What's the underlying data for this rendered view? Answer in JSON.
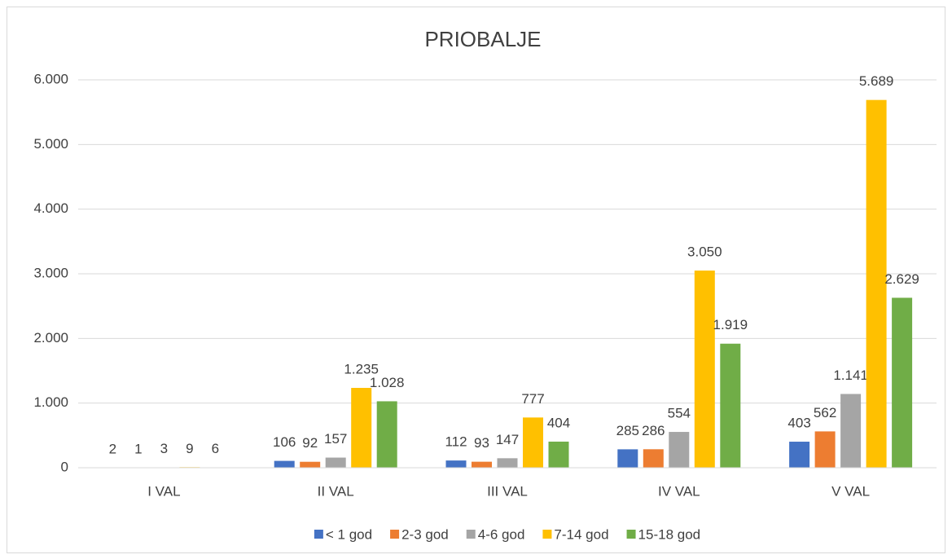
{
  "chart_data": {
    "type": "bar",
    "title": "PRIOBALJE",
    "categories": [
      "I VAL",
      "II VAL",
      "III VAL",
      "IV VAL",
      "V VAL"
    ],
    "series": [
      {
        "name": "< 1 god",
        "color": "#4472c4",
        "values": [
          2,
          106,
          112,
          285,
          403
        ],
        "value_labels": [
          "2",
          "106",
          "112",
          "285",
          "403"
        ]
      },
      {
        "name": "2-3 god",
        "color": "#ed7d31",
        "values": [
          1,
          92,
          93,
          286,
          562
        ],
        "value_labels": [
          "1",
          "92",
          "93",
          "286",
          "562"
        ]
      },
      {
        "name": "4-6 god",
        "color": "#a5a5a5",
        "values": [
          3,
          157,
          147,
          554,
          1141
        ],
        "value_labels": [
          "3",
          "157",
          "147",
          "554",
          "1.141"
        ]
      },
      {
        "name": "7-14 god",
        "color": "#ffc000",
        "values": [
          9,
          1235,
          777,
          3050,
          5689
        ],
        "value_labels": [
          "9",
          "1.235",
          "777",
          "3.050",
          "5.689"
        ]
      },
      {
        "name": "15-18 god",
        "color": "#70ad47",
        "values": [
          6,
          1028,
          404,
          1919,
          2629
        ],
        "value_labels": [
          "6",
          "1.028",
          "404",
          "1.919",
          "2.629"
        ]
      }
    ],
    "ylim": [
      0,
      6000
    ],
    "yticks": [
      0,
      {
        "value": 1000,
        "label": "1.000"
      },
      {
        "value": 2000,
        "label": "2.000"
      },
      {
        "value": 3000,
        "label": "3.000"
      },
      {
        "value": 4000,
        "label": "4.000"
      },
      {
        "value": 5000,
        "label": "5.000"
      },
      {
        "value": 6000,
        "label": "6.000"
      }
    ],
    "grid": true,
    "legend": "bottom"
  }
}
